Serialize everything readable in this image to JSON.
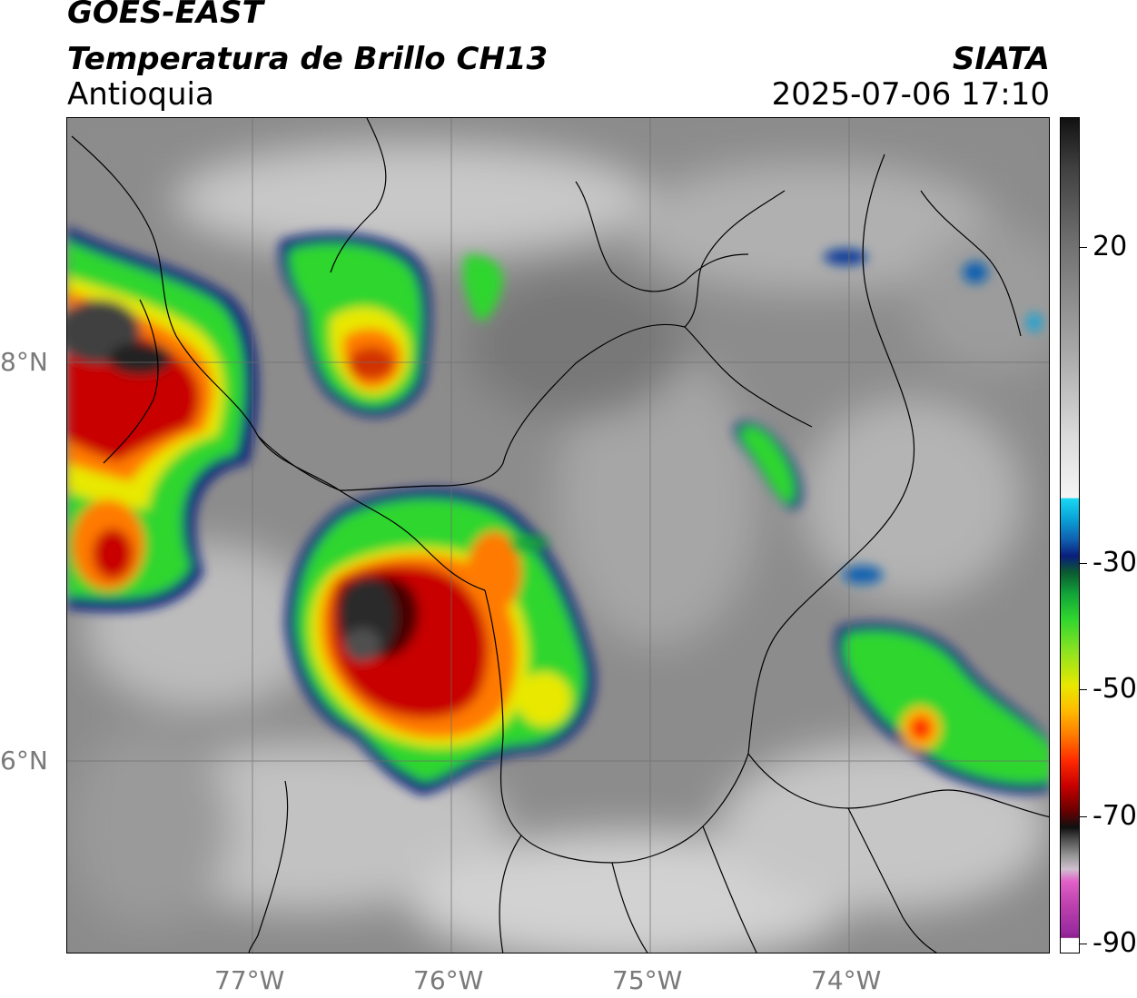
{
  "header": {
    "title": "GOES-EAST",
    "subtitle": "Temperatura de Brillo CH13",
    "region": "Antioquia",
    "organization": "SIATA",
    "timestamp": "2025-07-06 17:10"
  },
  "axes": {
    "lat_labels": [
      "8°N",
      "6°N"
    ],
    "lon_labels": [
      "77°W",
      "76°W",
      "75°W",
      "74°W"
    ]
  },
  "colorbar": {
    "tick_labels": [
      "20",
      "-30",
      "-50",
      "-70",
      "-90"
    ]
  },
  "colors": {
    "very_cold_core": "#101010",
    "cold_red": "#c80000",
    "orange": "#ff7a00",
    "yellow": "#e8e800",
    "green": "#2fd62f",
    "blue_edge": "#0a1e7a",
    "cyan_edge": "#19d7f2",
    "warm_gray": "#8a8a8a"
  }
}
